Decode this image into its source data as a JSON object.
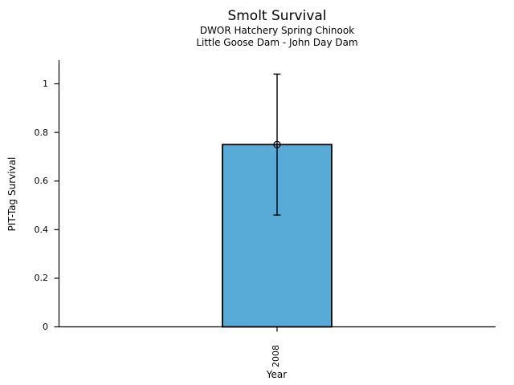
{
  "chart_data": {
    "type": "bar",
    "title": "Smolt Survival",
    "subtitle": [
      "DWOR Hatchery Spring Chinook",
      "Little Goose Dam - John Day Dam"
    ],
    "xlabel": "Year",
    "ylabel": "PIT-Tag Survival",
    "categories": [
      "2008"
    ],
    "values": [
      0.75
    ],
    "error_low": [
      0.46
    ],
    "error_high": [
      1.04
    ],
    "ylim": [
      0,
      1.1
    ],
    "yticks": [
      0,
      0.2,
      0.4,
      0.6,
      0.8,
      1
    ],
    "ytick_labels": [
      "0",
      "0.2",
      "0.4",
      "0.6",
      "0.8",
      "1"
    ],
    "bar_color": "#58ABD6",
    "bar_edge_color": "#000000",
    "error_color": "#000000",
    "marker": "open-circle",
    "grid": false,
    "legend": "none"
  }
}
